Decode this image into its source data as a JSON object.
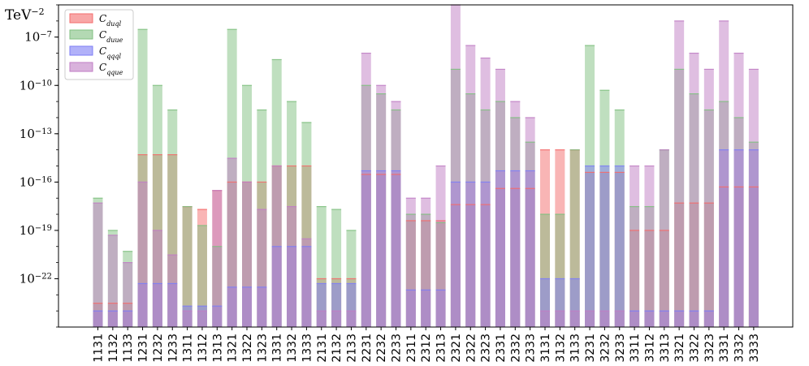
{
  "chart_data": {
    "type": "bar",
    "y_scale": "log",
    "y_unit": "TeV",
    "y_unit_exponent": "−2",
    "ylim": [
      1e-25,
      1e-05
    ],
    "y_ticks": [
      {
        "value": 1e-07,
        "mantissa": "10",
        "exponent": "−7"
      },
      {
        "value": 1e-10,
        "mantissa": "10",
        "exponent": "−10"
      },
      {
        "value": 1e-13,
        "mantissa": "10",
        "exponent": "−13"
      },
      {
        "value": 1e-16,
        "mantissa": "10",
        "exponent": "−16"
      },
      {
        "value": 1e-19,
        "mantissa": "10",
        "exponent": "−19"
      },
      {
        "value": 1e-22,
        "mantissa": "10",
        "exponent": "−22"
      }
    ],
    "grid": false,
    "legend_position": "top-left",
    "colors": {
      "duql": "#f36c6c",
      "duue": "#80c080",
      "qqql": "#7d7df5",
      "qque": "#c07ec4",
      "dark_duql_qqql": "#6a4d9f"
    },
    "categories": [
      "1131",
      "1132",
      "1133",
      "1231",
      "1232",
      "1233",
      "1311",
      "1312",
      "1313",
      "1321",
      "1322",
      "1323",
      "1331",
      "1332",
      "1333",
      "2131",
      "2132",
      "2133",
      "2231",
      "2232",
      "2233",
      "2311",
      "2312",
      "2313",
      "2321",
      "2322",
      "2323",
      "2331",
      "2332",
      "2333",
      "3131",
      "3132",
      "3133",
      "3231",
      "3232",
      "3233",
      "3311",
      "3312",
      "3313",
      "3321",
      "3322",
      "3323",
      "3331",
      "3332",
      "3333"
    ],
    "series": [
      {
        "key": "duql",
        "name": "C",
        "sub": "duql",
        "values": [
          3e-24,
          3e-24,
          3e-24,
          5e-15,
          5e-15,
          5e-15,
          3e-18,
          2e-18,
          3e-17,
          1e-16,
          1e-16,
          1e-16,
          1e-15,
          1e-15,
          1e-15,
          1e-22,
          1e-22,
          1e-22,
          3e-16,
          3e-16,
          3e-16,
          4e-19,
          4e-19,
          4e-19,
          4e-18,
          4e-18,
          4e-18,
          4e-17,
          4e-17,
          4e-17,
          1e-14,
          1e-14,
          1e-14,
          4e-16,
          4e-16,
          4e-16,
          1e-19,
          1e-19,
          1e-19,
          5e-18,
          5e-18,
          5e-18,
          5e-17,
          5e-17,
          5e-17
        ]
      },
      {
        "key": "duue",
        "name": "C",
        "sub": "duue",
        "values": [
          1e-17,
          1e-19,
          5e-21,
          3e-07,
          1e-10,
          3e-12,
          3e-18,
          2e-19,
          1e-20,
          3e-07,
          1e-10,
          3e-12,
          4e-09,
          1e-11,
          5e-13,
          3e-18,
          2e-18,
          1e-19,
          1e-10,
          3e-11,
          3e-12,
          1e-18,
          1e-18,
          3e-19,
          1e-09,
          3e-11,
          3e-12,
          1e-11,
          1e-12,
          3e-14,
          1e-18,
          1e-18,
          1e-14,
          3e-08,
          5e-11,
          3e-12,
          3e-18,
          3e-18,
          1e-14,
          1e-09,
          3e-11,
          3e-12,
          1e-11,
          1e-12,
          3e-14
        ]
      },
      {
        "key": "qqql",
        "name": "C",
        "sub": "qqql",
        "values": [
          1e-24,
          1e-24,
          1e-24,
          5e-23,
          5e-23,
          5e-23,
          2e-24,
          2e-24,
          2e-24,
          3e-23,
          3e-23,
          3e-23,
          1e-20,
          1e-20,
          1e-20,
          5e-23,
          5e-23,
          5e-23,
          5e-16,
          5e-16,
          5e-16,
          2e-23,
          2e-23,
          2e-23,
          1e-16,
          1e-16,
          1e-16,
          5e-16,
          5e-16,
          5e-16,
          1e-22,
          1e-22,
          1e-22,
          1e-15,
          1e-15,
          1e-15,
          1e-24,
          1e-24,
          1e-24,
          1e-24,
          1e-24,
          1e-24,
          1e-14,
          1e-14,
          1e-14
        ]
      },
      {
        "key": "qque",
        "name": "C",
        "sub": "qque",
        "values": [
          5e-18,
          5e-20,
          1e-21,
          1e-16,
          1e-19,
          3e-21,
          1e-24,
          1e-24,
          3e-17,
          3e-15,
          1e-16,
          2e-18,
          1e-15,
          3e-18,
          3e-20,
          1e-24,
          1e-24,
          1e-24,
          1e-08,
          1e-10,
          1e-11,
          1e-17,
          1e-17,
          1e-15,
          1e-05,
          3e-08,
          5e-09,
          1e-09,
          1e-11,
          1e-12,
          1e-24,
          1e-24,
          1e-24,
          1e-24,
          1e-24,
          1e-24,
          1e-15,
          1e-15,
          1e-14,
          1e-06,
          1e-08,
          1e-09,
          1e-06,
          1e-08,
          1e-09
        ]
      }
    ]
  }
}
